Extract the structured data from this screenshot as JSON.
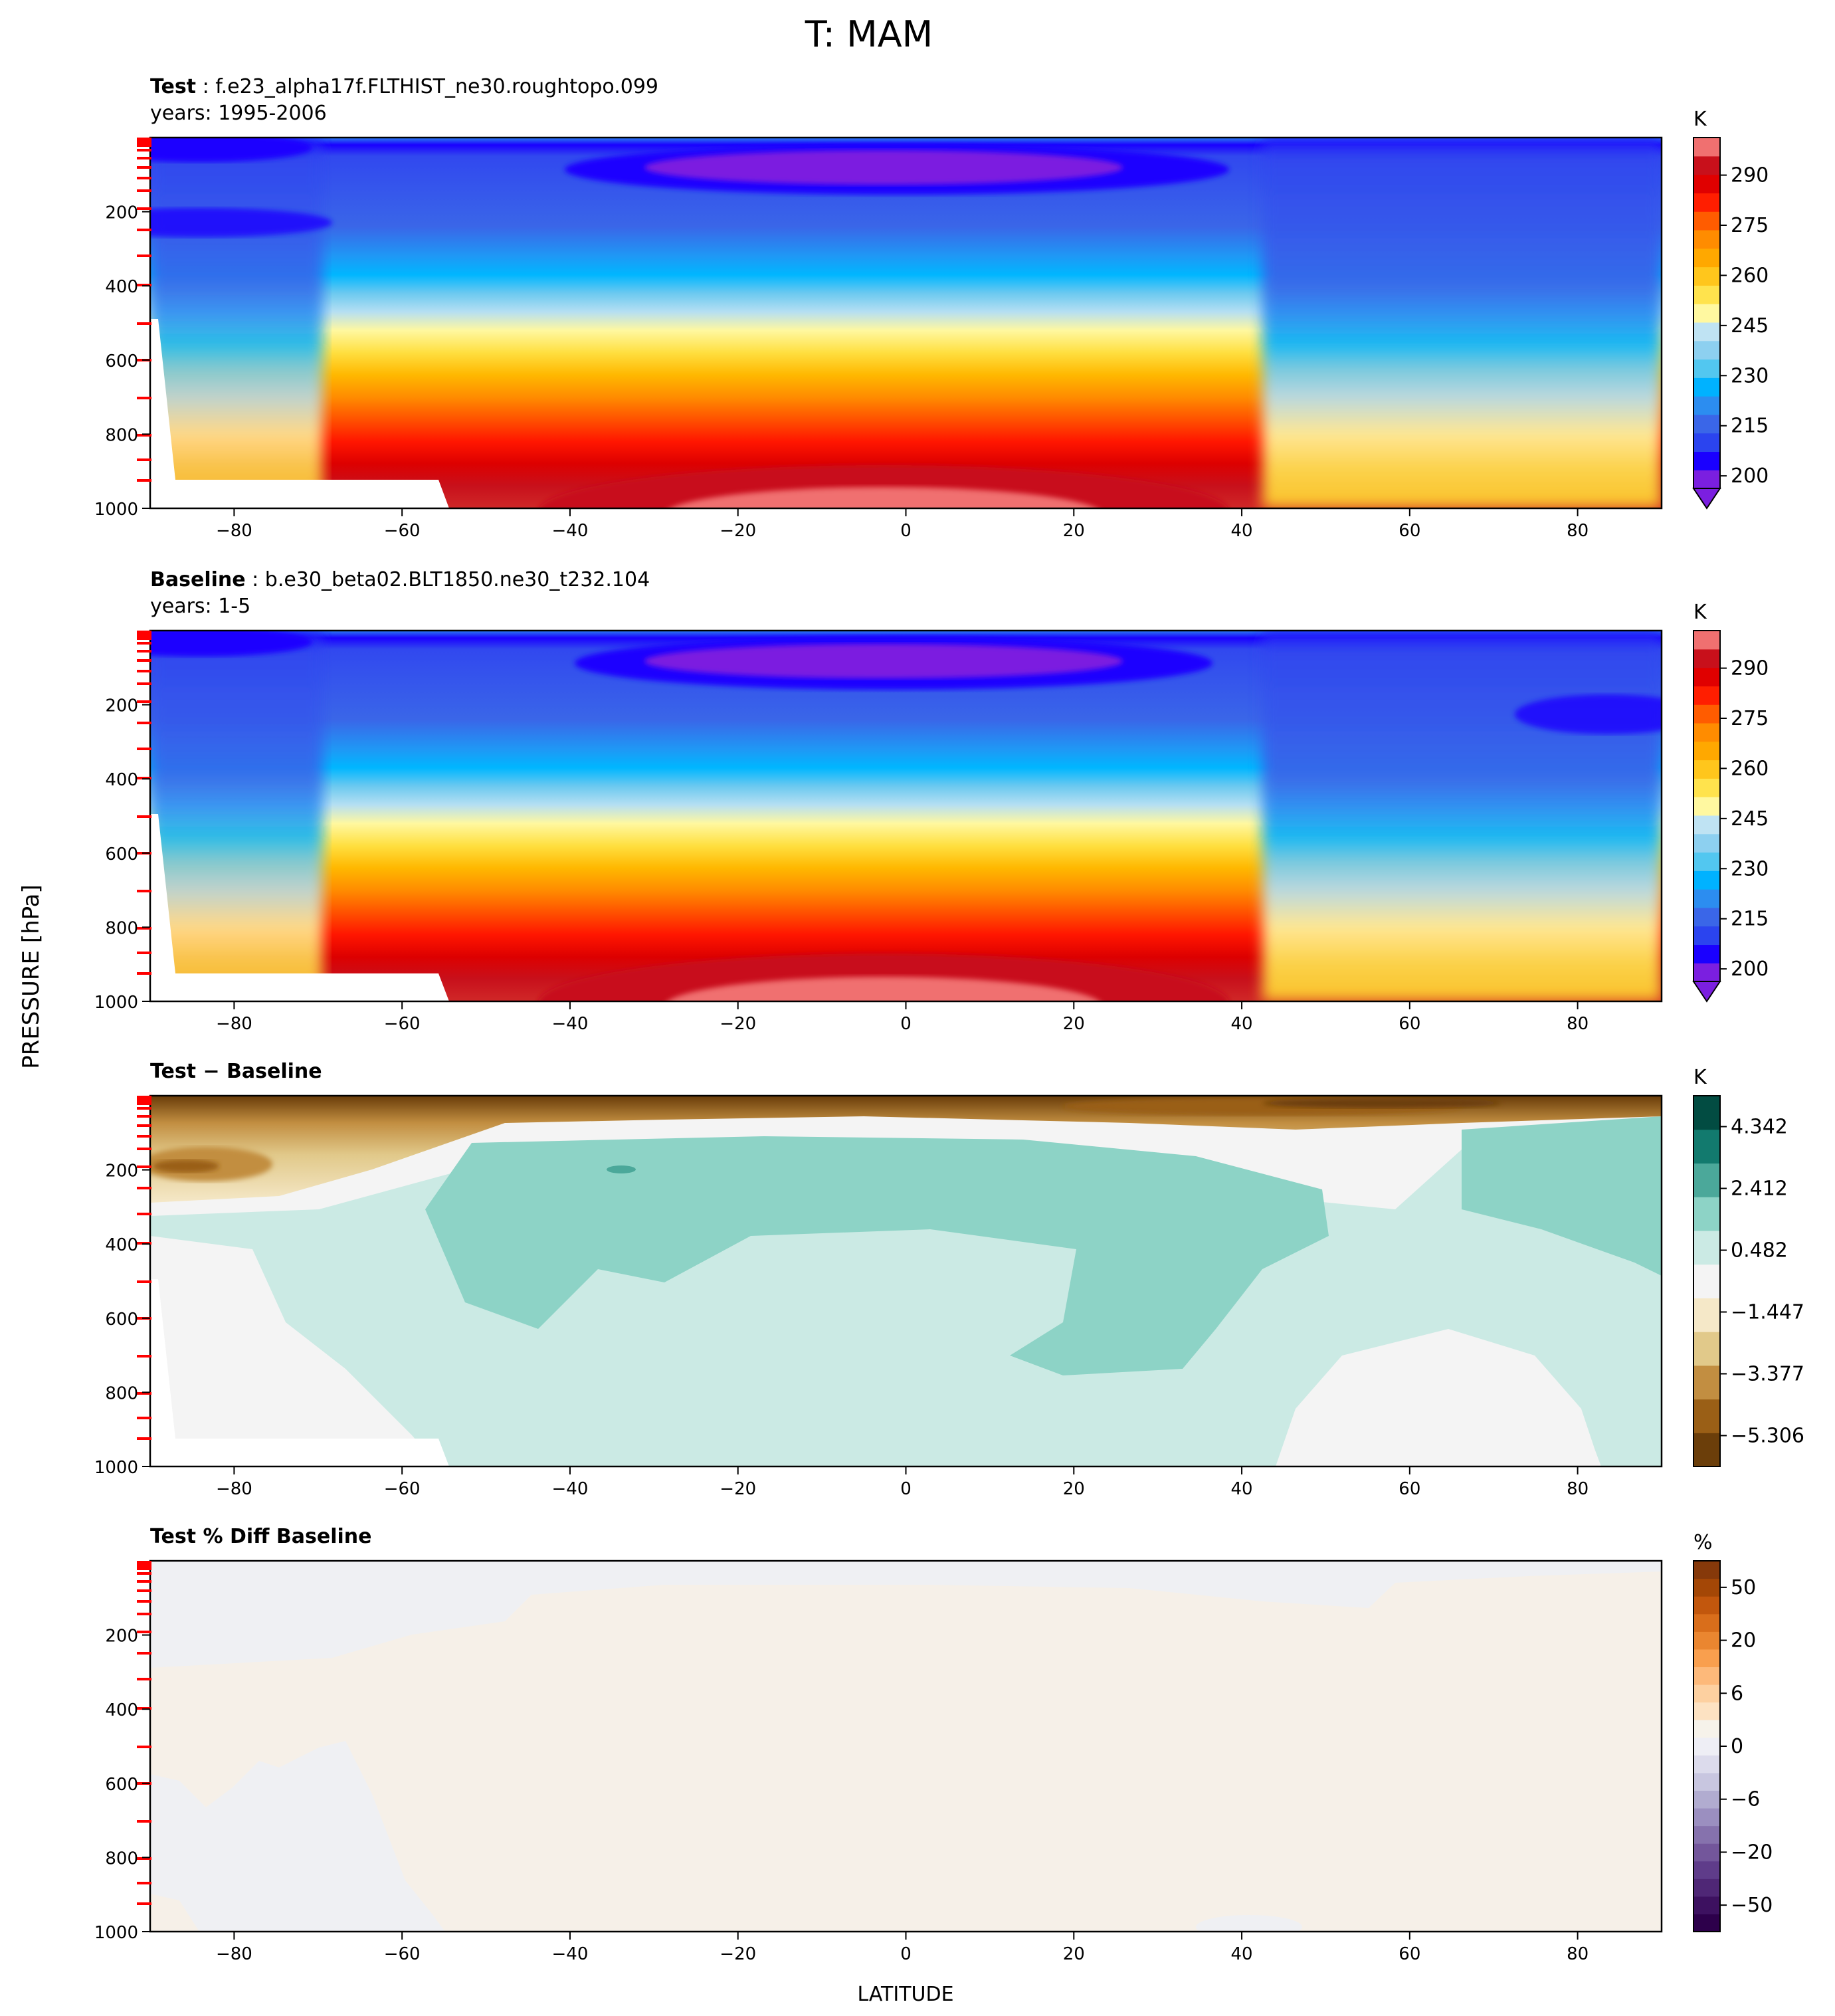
{
  "figure": {
    "title": "T: MAM",
    "ylabel": "PRESSURE [hPa]",
    "xlabel": "LATITUDE"
  },
  "chart_data": [
    {
      "type": "heatmap",
      "panel": "test",
      "title_bold": "Test",
      "title_rest": " : f.e23_alpha17f.FLTHIST_ne30.roughtopo.099",
      "subtitle": "years: 1995-2006",
      "x_ticks": [
        -80,
        -60,
        -40,
        -20,
        0,
        20,
        40,
        60,
        80
      ],
      "y_ticks": [
        200,
        400,
        600,
        800,
        1000
      ],
      "xlim": [
        -90,
        90
      ],
      "ylim": [
        1000,
        0
      ],
      "colorbar": {
        "unit": "K",
        "ticks": [
          "290",
          "275",
          "260",
          "245",
          "230",
          "215",
          "200"
        ],
        "colors": [
          "#7b1fe0",
          "#1a00ff",
          "#2b44ef",
          "#3a66e8",
          "#2c8df0",
          "#00b2ff",
          "#52c7f0",
          "#8dd0f0",
          "#bfe3f3",
          "#fff8a0",
          "#ffe34d",
          "#ffc61c",
          "#ffa800",
          "#ff8c00",
          "#ff5c00",
          "#ff1e00",
          "#e00000",
          "#c8101b",
          "#f07070"
        ]
      }
    },
    {
      "type": "heatmap",
      "panel": "baseline",
      "title_bold": "Baseline",
      "title_rest": " : b.e30_beta02.BLT1850.ne30_t232.104",
      "subtitle": "years: 1-5",
      "x_ticks": [
        -80,
        -60,
        -40,
        -20,
        0,
        20,
        40,
        60,
        80
      ],
      "y_ticks": [
        200,
        400,
        600,
        800,
        1000
      ],
      "xlim": [
        -90,
        90
      ],
      "ylim": [
        1000,
        0
      ],
      "colorbar": {
        "unit": "K",
        "ticks": [
          "290",
          "275",
          "260",
          "245",
          "230",
          "215",
          "200"
        ],
        "colors": [
          "#7b1fe0",
          "#1a00ff",
          "#2b44ef",
          "#3a66e8",
          "#2c8df0",
          "#00b2ff",
          "#52c7f0",
          "#8dd0f0",
          "#bfe3f3",
          "#fff8a0",
          "#ffe34d",
          "#ffc61c",
          "#ffa800",
          "#ff8c00",
          "#ff5c00",
          "#ff1e00",
          "#e00000",
          "#c8101b",
          "#f07070"
        ]
      }
    },
    {
      "type": "heatmap",
      "panel": "difference",
      "title_bold": "Test − Baseline",
      "title_rest": "",
      "subtitle": "",
      "x_ticks": [
        -80,
        -60,
        -40,
        -20,
        0,
        20,
        40,
        60,
        80
      ],
      "y_ticks": [
        200,
        400,
        600,
        800,
        1000
      ],
      "xlim": [
        -90,
        90
      ],
      "ylim": [
        1000,
        0
      ],
      "colorbar": {
        "unit": "K",
        "ticks": [
          "4.342",
          "2.412",
          "0.482",
          "−1.447",
          "−3.377",
          "−5.306"
        ],
        "colors": [
          "#6b3e0a",
          "#9a5f16",
          "#c28e41",
          "#e1c98a",
          "#f5e8c8",
          "#f4f4f4",
          "#cbeae4",
          "#8dd3c6",
          "#4ba89a",
          "#127a6e",
          "#024c42"
        ]
      }
    },
    {
      "type": "heatmap",
      "panel": "percent_diff",
      "title_bold": "Test % Diff Baseline",
      "title_rest": "",
      "subtitle": "",
      "x_ticks": [
        -80,
        -60,
        -40,
        -20,
        0,
        20,
        40,
        60,
        80
      ],
      "y_ticks": [
        200,
        400,
        600,
        800,
        1000
      ],
      "xlim": [
        -90,
        90
      ],
      "ylim": [
        1000,
        0
      ],
      "colorbar": {
        "unit": "%",
        "ticks": [
          "50",
          "20",
          "6",
          "0",
          "−6",
          "−20",
          "−50"
        ],
        "colors": [
          "#2d004b",
          "#3d1160",
          "#4f2776",
          "#5f3c8a",
          "#73569b",
          "#8672ad",
          "#9b8fc0",
          "#b1acd0",
          "#c8c6e0",
          "#dcdbec",
          "#eeeef5",
          "#f6f2ea",
          "#fde2c2",
          "#fdd0a0",
          "#fdb97a",
          "#f99f4e",
          "#ea8630",
          "#d96e1b",
          "#c2570d",
          "#a44706",
          "#86390a"
        ]
      }
    }
  ]
}
